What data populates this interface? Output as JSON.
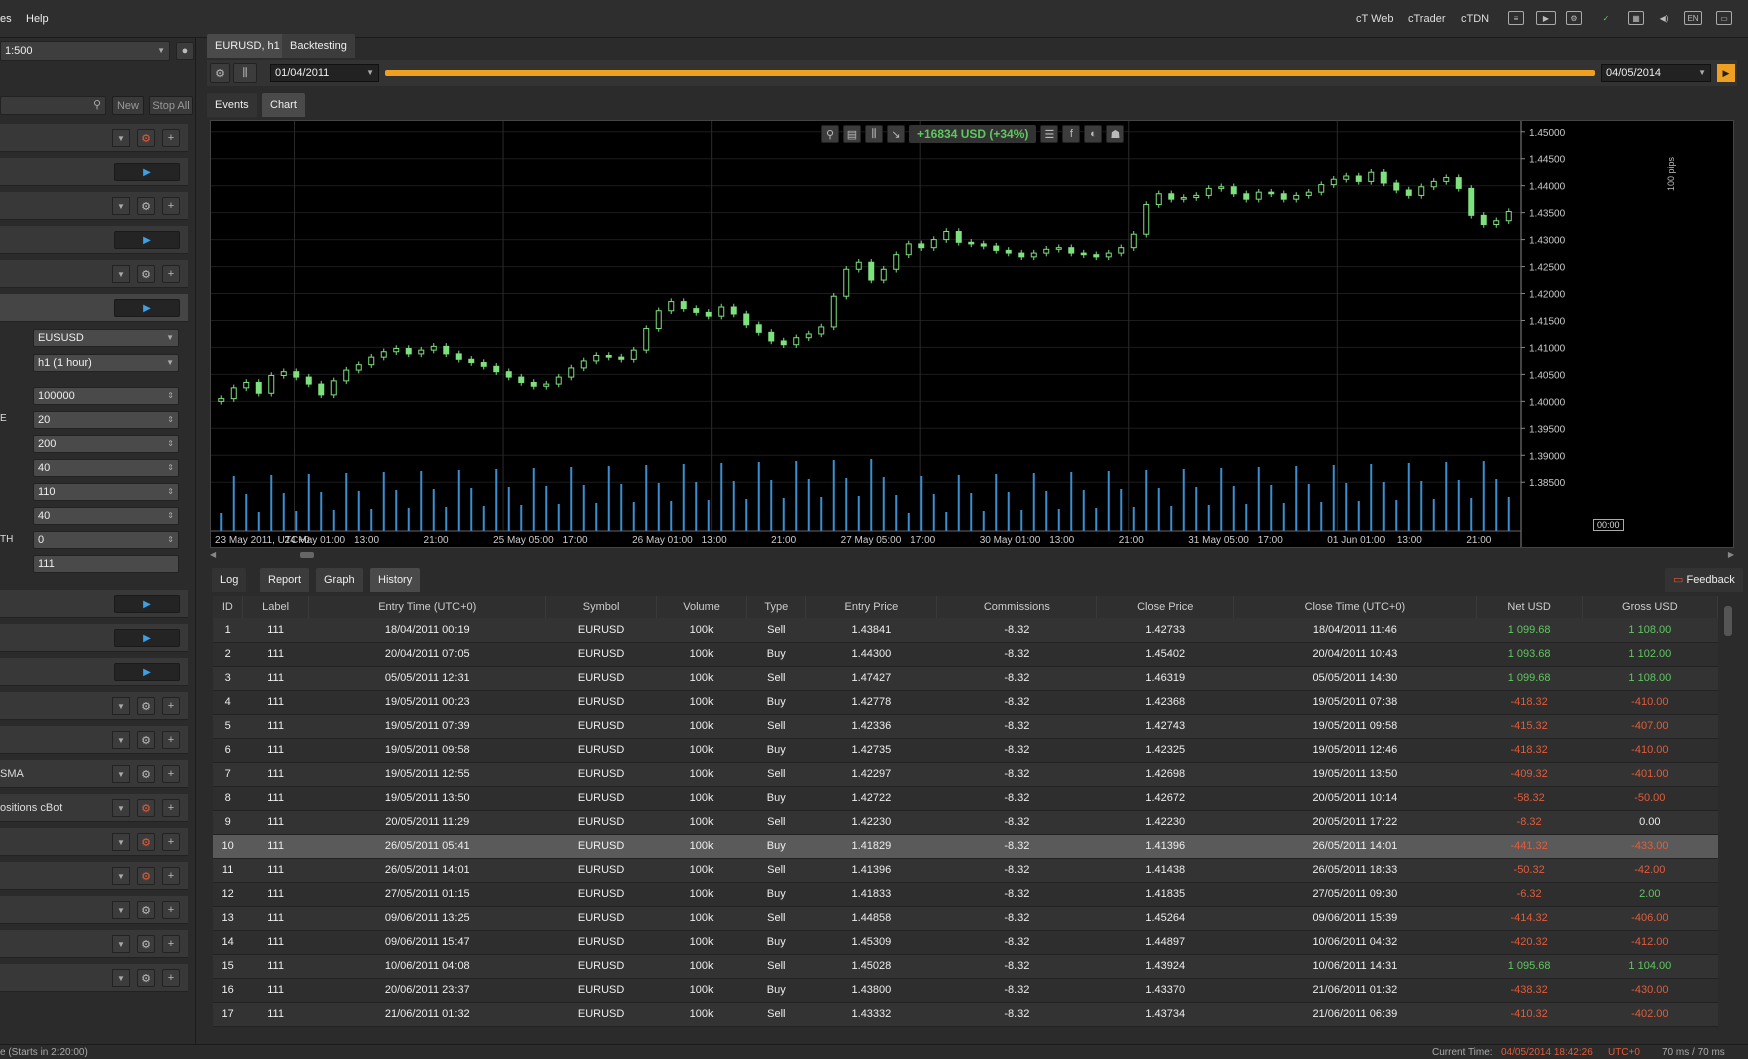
{
  "menu": {
    "file_partial": "es",
    "help": "Help"
  },
  "platform_links": [
    "cT Web",
    "cTrader",
    "cTDN"
  ],
  "lang": "EN",
  "left": {
    "leverage": "1:500",
    "search_placeholder": "",
    "new_label": "New",
    "stop_all_label": "Stop All",
    "symbol": "EUSUSD",
    "timeframe": "h1 (1 hour)",
    "params": [
      {
        "label": "",
        "value": "100000"
      },
      {
        "label": "E",
        "value": "20"
      },
      {
        "label": "",
        "value": "200"
      },
      {
        "label": "",
        "value": "40"
      },
      {
        "label": "",
        "value": "110"
      },
      {
        "label": "",
        "value": "40"
      },
      {
        "label": "TH",
        "value": "0"
      },
      {
        "label": "",
        "value": "111"
      }
    ],
    "bot_sma": "SMA",
    "bot_positions": "ositions cBot"
  },
  "main": {
    "symbol_tab": "EURUSD, h1",
    "backtesting_tab": "Backtesting",
    "start_date": "01/04/2011",
    "end_date": "04/05/2014",
    "view_tabs": [
      "Events",
      "Chart"
    ],
    "bottom_tabs": [
      "Log",
      "Report",
      "Graph",
      "History"
    ],
    "feedback": "Feedback"
  },
  "chart_overlay": {
    "pnl": "+16834 USD (+34%)",
    "pips_label": "100 pips",
    "time_marker": "00:00"
  },
  "chart_data": {
    "type": "candlestick",
    "y_ticks": [
      "1.45000",
      "1.44500",
      "1.44000",
      "1.43500",
      "1.43000",
      "1.42500",
      "1.42000",
      "1.41500",
      "1.41000",
      "1.40500",
      "1.40000",
      "1.39500",
      "1.39000",
      "1.38500"
    ],
    "x_ticks": [
      "23 May 2011, UTC+0",
      "24 May 01:00",
      "13:00",
      "21:00",
      "25 May 05:00",
      "17:00",
      "26 May 01:00",
      "13:00",
      "21:00",
      "27 May 05:00",
      "17:00",
      "30 May 01:00",
      "13:00",
      "21:00",
      "31 May 05:00",
      "17:00",
      "01 Jun 01:00",
      "13:00",
      "21:00"
    ],
    "ylim": [
      1.383,
      1.452
    ],
    "close": [
      1.4005,
      1.4025,
      1.4035,
      1.4015,
      1.4048,
      1.4055,
      1.4045,
      1.4032,
      1.4012,
      1.4038,
      1.4058,
      1.4068,
      1.4082,
      1.4092,
      1.4098,
      1.4088,
      1.4095,
      1.4102,
      1.4088,
      1.4078,
      1.4072,
      1.4065,
      1.4055,
      1.4045,
      1.4035,
      1.4028,
      1.4032,
      1.4045,
      1.4062,
      1.4075,
      1.4085,
      1.4082,
      1.4078,
      1.4095,
      1.4135,
      1.4168,
      1.4185,
      1.4172,
      1.4165,
      1.4158,
      1.4175,
      1.4162,
      1.4142,
      1.4128,
      1.4112,
      1.4105,
      1.4118,
      1.4125,
      1.4138,
      1.4195,
      1.4245,
      1.4258,
      1.4225,
      1.4245,
      1.4272,
      1.4292,
      1.4285,
      1.43,
      1.4315,
      1.4295,
      1.4292,
      1.4288,
      1.428,
      1.4275,
      1.4268,
      1.4275,
      1.4282,
      1.4285,
      1.4275,
      1.4272,
      1.4268,
      1.4275,
      1.4285,
      1.431,
      1.4365,
      1.4385,
      1.4375,
      1.4378,
      1.4382,
      1.4395,
      1.4398,
      1.4385,
      1.4375,
      1.4388,
      1.4385,
      1.4375,
      1.4382,
      1.4388,
      1.4402,
      1.4412,
      1.4418,
      1.4408,
      1.4425,
      1.4405,
      1.4392,
      1.4382,
      1.4398,
      1.4408,
      1.4415,
      1.4395,
      1.4345,
      1.4328,
      1.4335,
      1.4352
    ]
  },
  "history": {
    "columns": [
      "ID",
      "Label",
      "Entry Time (UTC+0)",
      "Symbol",
      "Volume",
      "Type",
      "Entry Price",
      "Commissions",
      "Close Price",
      "Close Time (UTC+0)",
      "Net USD",
      "Gross USD"
    ],
    "rows": [
      [
        "1",
        "111",
        "18/04/2011 00:19",
        "EURUSD",
        "100k",
        "Sell",
        "1.43841",
        "-8.32",
        "1.42733",
        "18/04/2011 11:46",
        "1 099.68",
        "1 108.00"
      ],
      [
        "2",
        "111",
        "20/04/2011 07:05",
        "EURUSD",
        "100k",
        "Buy",
        "1.44300",
        "-8.32",
        "1.45402",
        "20/04/2011 10:43",
        "1 093.68",
        "1 102.00"
      ],
      [
        "3",
        "111",
        "05/05/2011 12:31",
        "EURUSD",
        "100k",
        "Sell",
        "1.47427",
        "-8.32",
        "1.46319",
        "05/05/2011 14:30",
        "1 099.68",
        "1 108.00"
      ],
      [
        "4",
        "111",
        "19/05/2011 00:23",
        "EURUSD",
        "100k",
        "Buy",
        "1.42778",
        "-8.32",
        "1.42368",
        "19/05/2011 07:38",
        "-418.32",
        "-410.00"
      ],
      [
        "5",
        "111",
        "19/05/2011 07:39",
        "EURUSD",
        "100k",
        "Sell",
        "1.42336",
        "-8.32",
        "1.42743",
        "19/05/2011 09:58",
        "-415.32",
        "-407.00"
      ],
      [
        "6",
        "111",
        "19/05/2011 09:58",
        "EURUSD",
        "100k",
        "Buy",
        "1.42735",
        "-8.32",
        "1.42325",
        "19/05/2011 12:46",
        "-418.32",
        "-410.00"
      ],
      [
        "7",
        "111",
        "19/05/2011 12:55",
        "EURUSD",
        "100k",
        "Sell",
        "1.42297",
        "-8.32",
        "1.42698",
        "19/05/2011 13:50",
        "-409.32",
        "-401.00"
      ],
      [
        "8",
        "111",
        "19/05/2011 13:50",
        "EURUSD",
        "100k",
        "Buy",
        "1.42722",
        "-8.32",
        "1.42672",
        "20/05/2011 10:14",
        "-58.32",
        "-50.00"
      ],
      [
        "9",
        "111",
        "20/05/2011 11:29",
        "EURUSD",
        "100k",
        "Sell",
        "1.42230",
        "-8.32",
        "1.42230",
        "20/05/2011 17:22",
        "-8.32",
        "0.00"
      ],
      [
        "10",
        "111",
        "26/05/2011 05:41",
        "EURUSD",
        "100k",
        "Buy",
        "1.41829",
        "-8.32",
        "1.41396",
        "26/05/2011 14:01",
        "-441.32",
        "-433.00"
      ],
      [
        "11",
        "111",
        "26/05/2011 14:01",
        "EURUSD",
        "100k",
        "Sell",
        "1.41396",
        "-8.32",
        "1.41438",
        "26/05/2011 18:33",
        "-50.32",
        "-42.00"
      ],
      [
        "12",
        "111",
        "27/05/2011 01:15",
        "EURUSD",
        "100k",
        "Buy",
        "1.41833",
        "-8.32",
        "1.41835",
        "27/05/2011 09:30",
        "-6.32",
        "2.00"
      ],
      [
        "13",
        "111",
        "09/06/2011 13:25",
        "EURUSD",
        "100k",
        "Sell",
        "1.44858",
        "-8.32",
        "1.45264",
        "09/06/2011 15:39",
        "-414.32",
        "-406.00"
      ],
      [
        "14",
        "111",
        "09/06/2011 15:47",
        "EURUSD",
        "100k",
        "Buy",
        "1.45309",
        "-8.32",
        "1.44897",
        "10/06/2011 04:32",
        "-420.32",
        "-412.00"
      ],
      [
        "15",
        "111",
        "10/06/2011 04:08",
        "EURUSD",
        "100k",
        "Sell",
        "1.45028",
        "-8.32",
        "1.43924",
        "10/06/2011 14:31",
        "1 095.68",
        "1 104.00"
      ],
      [
        "16",
        "111",
        "20/06/2011 23:37",
        "EURUSD",
        "100k",
        "Buy",
        "1.43800",
        "-8.32",
        "1.43370",
        "21/06/2011 01:32",
        "-438.32",
        "-430.00"
      ],
      [
        "17",
        "111",
        "21/06/2011 01:32",
        "EURUSD",
        "100k",
        "Sell",
        "1.43332",
        "-8.32",
        "1.43734",
        "21/06/2011 06:39",
        "-410.32",
        "-402.00"
      ]
    ],
    "selected_row": 9
  },
  "status": {
    "left": "e (Starts in 2:20:00)",
    "current_time_label": "Current Time:",
    "current_time": "04/05/2014 18:42:26",
    "tz": "UTC+0",
    "latency": "70 ms / 70 ms"
  },
  "colors": {
    "accent": "#f0a020",
    "positive": "#5ec85e",
    "negative": "#e25c3a",
    "candle": "#7ee07e",
    "volume": "#3a8fd0"
  }
}
